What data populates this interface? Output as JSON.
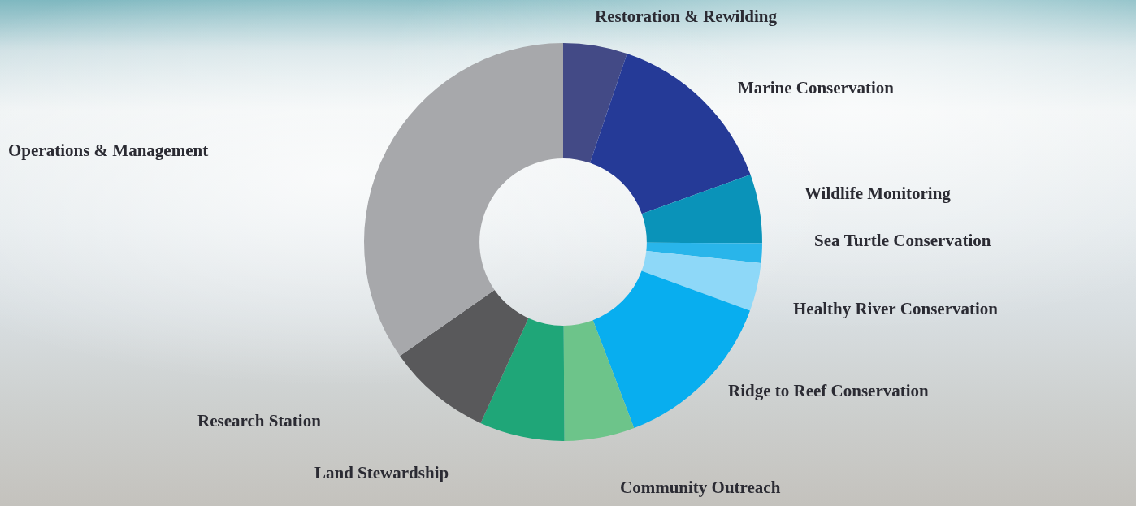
{
  "chart_data": {
    "type": "doughnut",
    "categories": [
      "Restoration & Rewilding",
      "Marine Conservation",
      "Wildlife Monitoring",
      "Sea Turtle Conservation",
      "Healthy River Conservation",
      "Ridge to Reef Conservation",
      "Community Outreach",
      "Land Stewardship",
      "Research Station",
      "Operations & Management"
    ],
    "values": [
      5.2,
      14.3,
      5.6,
      1.6,
      3.9,
      13.6,
      5.7,
      6.9,
      8.5,
      34.7
    ],
    "colors": [
      "#434a86",
      "#253a97",
      "#0a93b9",
      "#29b5ea",
      "#8ed8f8",
      "#08aeef",
      "#6dc48a",
      "#1fa678",
      "#59595b",
      "#a7a8ab"
    ]
  }
}
